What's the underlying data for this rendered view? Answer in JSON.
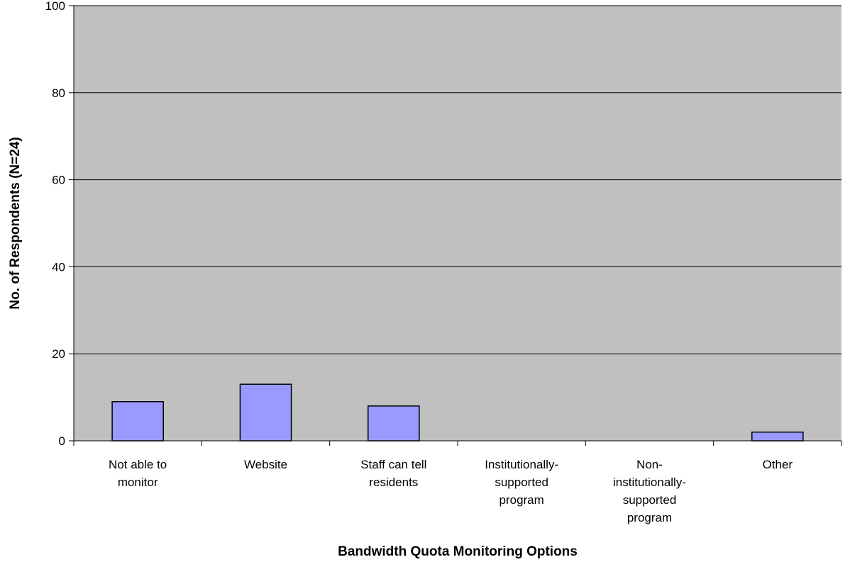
{
  "chart_data": {
    "type": "bar",
    "title": "",
    "xlabel": "Bandwidth Quota Monitoring Options",
    "ylabel": "No. of Respondents (N=24)",
    "categories": [
      [
        "Not able to",
        "monitor"
      ],
      [
        "Website"
      ],
      [
        "Staff can tell",
        "residents"
      ],
      [
        "Institutionally-",
        "supported",
        "program"
      ],
      [
        "Non-",
        "institutionally-",
        "supported",
        "program"
      ],
      [
        "Other"
      ]
    ],
    "values": [
      9,
      13,
      8,
      0,
      0,
      2
    ],
    "ylim": [
      0,
      100
    ],
    "yticks": [
      0,
      20,
      40,
      60,
      80,
      100
    ],
    "grid": true,
    "legend": "none",
    "colors": {
      "plot_background": "#c0c0c0",
      "bar_fill": "#9999ff",
      "bar_stroke": "#000000",
      "gridline": "#000000"
    }
  }
}
